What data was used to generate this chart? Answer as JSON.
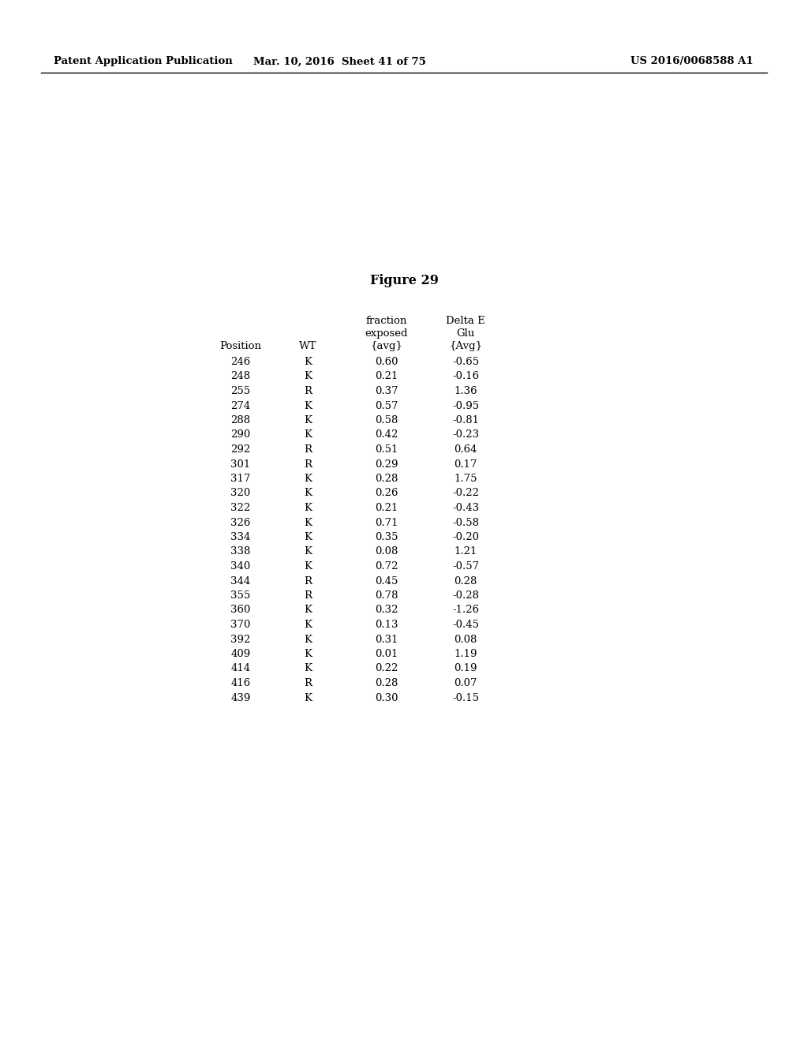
{
  "header_left": "Patent Application Publication",
  "header_mid": "Mar. 10, 2016  Sheet 41 of 75",
  "header_right": "US 2016/0068588 A1",
  "figure_title": "Figure 29",
  "col_header_line1": [
    "",
    "",
    "fraction",
    "Delta E"
  ],
  "col_header_line2": [
    "",
    "",
    "exposed",
    "Glu"
  ],
  "col_header_line3": [
    "Position",
    "WT",
    "{avg}",
    "{Avg}"
  ],
  "rows": [
    [
      "246",
      "K",
      "0.60",
      "-0.65"
    ],
    [
      "248",
      "K",
      "0.21",
      "-0.16"
    ],
    [
      "255",
      "R",
      "0.37",
      "1.36"
    ],
    [
      "274",
      "K",
      "0.57",
      "-0.95"
    ],
    [
      "288",
      "K",
      "0.58",
      "-0.81"
    ],
    [
      "290",
      "K",
      "0.42",
      "-0.23"
    ],
    [
      "292",
      "R",
      "0.51",
      "0.64"
    ],
    [
      "301",
      "R",
      "0.29",
      "0.17"
    ],
    [
      "317",
      "K",
      "0.28",
      "1.75"
    ],
    [
      "320",
      "K",
      "0.26",
      "-0.22"
    ],
    [
      "322",
      "K",
      "0.21",
      "-0.43"
    ],
    [
      "326",
      "K",
      "0.71",
      "-0.58"
    ],
    [
      "334",
      "K",
      "0.35",
      "-0.20"
    ],
    [
      "338",
      "K",
      "0.08",
      "1.21"
    ],
    [
      "340",
      "K",
      "0.72",
      "-0.57"
    ],
    [
      "344",
      "R",
      "0.45",
      "0.28"
    ],
    [
      "355",
      "R",
      "0.78",
      "-0.28"
    ],
    [
      "360",
      "K",
      "0.32",
      "-1.26"
    ],
    [
      "370",
      "K",
      "0.13",
      "-0.45"
    ],
    [
      "392",
      "K",
      "0.31",
      "0.08"
    ],
    [
      "409",
      "K",
      "0.01",
      "1.19"
    ],
    [
      "414",
      "K",
      "0.22",
      "0.19"
    ],
    [
      "416",
      "R",
      "0.28",
      "0.07"
    ],
    [
      "439",
      "K",
      "0.30",
      "-0.15"
    ]
  ],
  "bg_color": "#ffffff",
  "text_color": "#000000",
  "font_size_header": 9.5,
  "font_size_title": 11.5,
  "font_size_table": 9.5
}
